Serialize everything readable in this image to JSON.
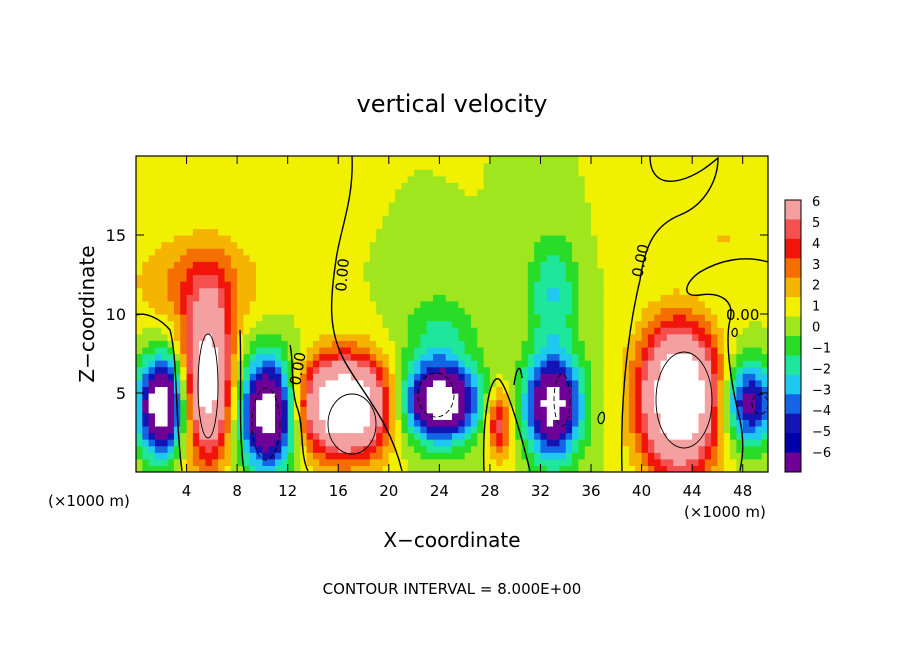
{
  "chart_data": {
    "type": "heatmap",
    "title": "vertical velocity",
    "xlabel": "X−coordinate",
    "ylabel": "Z−coordinate",
    "x_unit_left": "(×1000 m)",
    "x_unit_right": "(×1000 m)",
    "footer": "CONTOUR INTERVAL = 8.000E+00",
    "xlim": [
      0,
      50
    ],
    "ylim": [
      0,
      20
    ],
    "x_ticks": [
      4,
      8,
      12,
      16,
      20,
      24,
      28,
      32,
      36,
      40,
      44,
      48
    ],
    "x_ticklabels": [
      "4",
      "8",
      "12",
      "16",
      "20",
      "24",
      "28",
      "32",
      "36",
      "40",
      "44",
      "48"
    ],
    "y_ticks": [
      5,
      10,
      15
    ],
    "y_ticklabels": [
      "5",
      "10",
      "15"
    ],
    "colorbar": {
      "levels": [
        6,
        5,
        4,
        3,
        2,
        1,
        0,
        -1,
        -2,
        -3,
        -4,
        -5,
        -6
      ],
      "labels": [
        "6",
        "5",
        "4",
        "3",
        "2",
        "1",
        "0",
        "−1",
        "−2",
        "−3",
        "−4",
        "−5",
        "−6"
      ],
      "colors": [
        "#f4a0a0",
        "#f55050",
        "#f0140a",
        "#f56e00",
        "#f5b400",
        "#f0f000",
        "#a0e61e",
        "#28dc28",
        "#1ee69b",
        "#1ec8f0",
        "#1464e6",
        "#1414b4",
        "#0000aa",
        "#6e0096"
      ]
    },
    "contour_labels": [
      "0.00",
      "0.00",
      "0.00",
      "0.00"
    ],
    "cells": [
      {
        "x": 2.0,
        "z": 4.2,
        "w": -10,
        "rx": 1.8,
        "rz": 3.0
      },
      {
        "x": 5.7,
        "z": 6.0,
        "w": 10,
        "rx": 1.8,
        "rz": 5.0
      },
      {
        "x": 10.5,
        "z": 3.8,
        "w": -10,
        "rx": 2.2,
        "rz": 3.5
      },
      {
        "x": 16.5,
        "z": 4.2,
        "w": 12,
        "rx": 3.5,
        "rz": 3.0
      },
      {
        "x": 24.0,
        "z": 4.5,
        "w": -10,
        "rx": 3.0,
        "rz": 2.5
      },
      {
        "x": 28.7,
        "z": 3.2,
        "w": 5,
        "rx": 1.0,
        "rz": 2.2
      },
      {
        "x": 33.0,
        "z": 4.2,
        "w": -9,
        "rx": 2.2,
        "rz": 3.3
      },
      {
        "x": 43.0,
        "z": 4.8,
        "w": 12,
        "rx": 3.0,
        "rz": 4.6
      },
      {
        "x": 48.5,
        "z": 4.4,
        "w": -7,
        "rx": 2.0,
        "rz": 2.6
      },
      {
        "x": 33.0,
        "z": 11.5,
        "w": -3,
        "rx": 2.0,
        "rz": 3.5
      },
      {
        "x": 24.0,
        "z": 9.0,
        "w": -2,
        "rx": 3.0,
        "rz": 2.5
      },
      {
        "x": 5.0,
        "z": 12.0,
        "w": 2.5,
        "rx": 5.0,
        "rz": 3.0
      },
      {
        "x": 46.0,
        "z": 14.0,
        "w": 1.2,
        "rx": 6.0,
        "rz": 4.0
      },
      {
        "x": 44.0,
        "z": 11.0,
        "w": -1.2,
        "rx": 4.0,
        "rz": 3.0
      }
    ]
  }
}
